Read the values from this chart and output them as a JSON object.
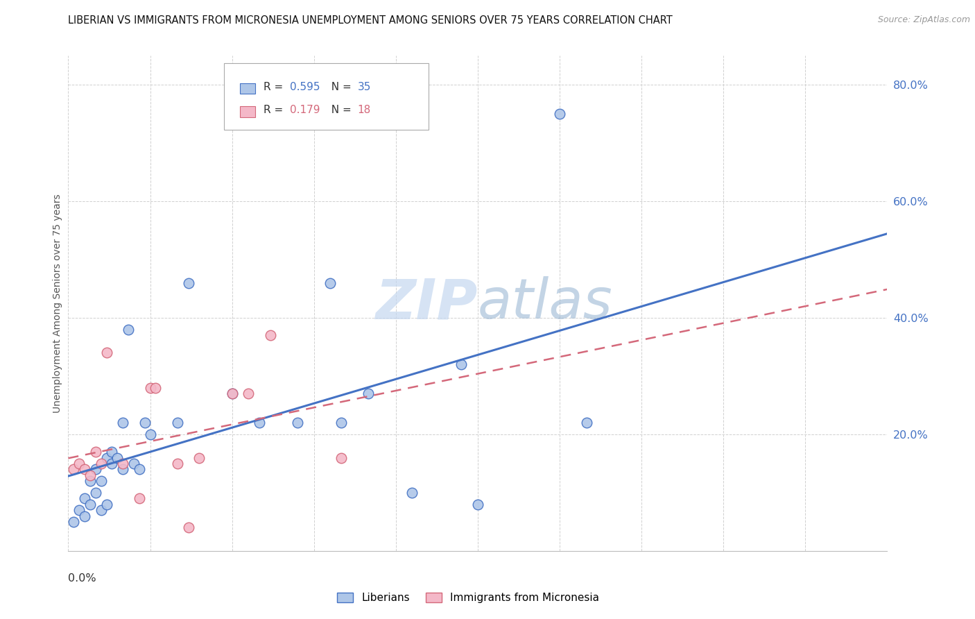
{
  "title": "LIBERIAN VS IMMIGRANTS FROM MICRONESIA UNEMPLOYMENT AMONG SENIORS OVER 75 YEARS CORRELATION CHART",
  "source": "Source: ZipAtlas.com",
  "ylabel": "Unemployment Among Seniors over 75 years",
  "xmin": 0.0,
  "xmax": 0.15,
  "ymin": 0.0,
  "ymax": 0.85,
  "yticks": [
    0.0,
    0.2,
    0.4,
    0.6,
    0.8
  ],
  "ytick_labels": [
    "",
    "20.0%",
    "40.0%",
    "60.0%",
    "80.0%"
  ],
  "legend1_r": "0.595",
  "legend1_n": "35",
  "legend2_r": "0.179",
  "legend2_n": "18",
  "liberian_fill": "#aec6e8",
  "micronesia_fill": "#f4b8c8",
  "line_blue": "#4472c4",
  "line_pink": "#d4687a",
  "watermark_color": "#c5d8f0",
  "liberian_x": [
    0.001,
    0.002,
    0.003,
    0.003,
    0.004,
    0.004,
    0.005,
    0.005,
    0.006,
    0.006,
    0.007,
    0.007,
    0.008,
    0.008,
    0.009,
    0.01,
    0.01,
    0.011,
    0.012,
    0.013,
    0.014,
    0.015,
    0.02,
    0.022,
    0.03,
    0.035,
    0.042,
    0.048,
    0.05,
    0.055,
    0.063,
    0.072,
    0.075,
    0.09,
    0.095
  ],
  "liberian_y": [
    0.05,
    0.07,
    0.06,
    0.09,
    0.08,
    0.12,
    0.1,
    0.14,
    0.07,
    0.12,
    0.08,
    0.16,
    0.15,
    0.17,
    0.16,
    0.14,
    0.22,
    0.38,
    0.15,
    0.14,
    0.22,
    0.2,
    0.22,
    0.46,
    0.27,
    0.22,
    0.22,
    0.46,
    0.22,
    0.27,
    0.1,
    0.32,
    0.08,
    0.75,
    0.22
  ],
  "micronesia_x": [
    0.001,
    0.002,
    0.003,
    0.004,
    0.005,
    0.006,
    0.007,
    0.01,
    0.013,
    0.015,
    0.016,
    0.02,
    0.022,
    0.024,
    0.03,
    0.033,
    0.037,
    0.05
  ],
  "micronesia_y": [
    0.14,
    0.15,
    0.14,
    0.13,
    0.17,
    0.15,
    0.34,
    0.15,
    0.09,
    0.28,
    0.28,
    0.15,
    0.04,
    0.16,
    0.27,
    0.27,
    0.37,
    0.16
  ]
}
